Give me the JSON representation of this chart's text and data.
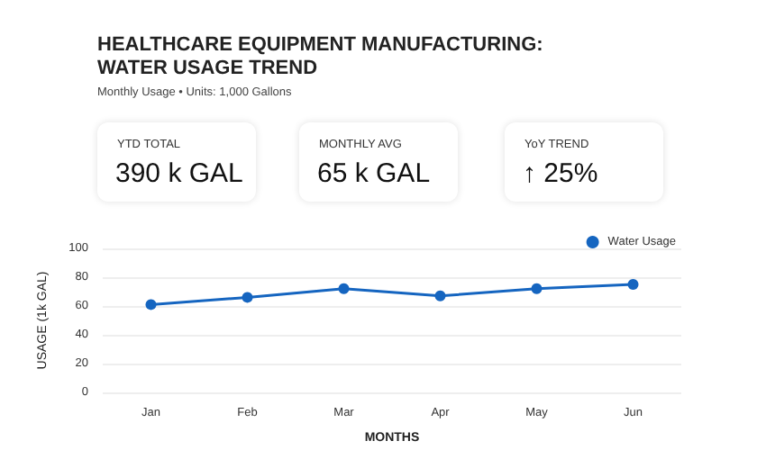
{
  "chart_data": {
    "type": "line",
    "title": "HEALTHCARE EQUIPMENT MANUFACTURING:\nWATER USAGE TREND",
    "subtitle": "Monthly Usage • Units: 1,000 Gallons",
    "annotations": [
      "YTD TOTAL",
      "390 k GAL",
      "MONTHLY AVG",
      "65 k GAL",
      "YoY TREND",
      "↑ 25%"
    ],
    "xlabel": "MONTHS",
    "ylabel": "USAGE (1k GAL)",
    "categories": [
      "Jan",
      "Feb",
      "Mar",
      "Apr",
      "May",
      "Jun"
    ],
    "series": [
      {
        "name": "Water Usage",
        "color": "#1565c0",
        "values": [
          61,
          66,
          72,
          67,
          72,
          75
        ]
      }
    ],
    "ylim": [
      0,
      100
    ],
    "yticks": [
      0,
      20,
      40,
      60,
      80,
      100
    ],
    "grid": "y",
    "legend": "top right",
    "marker": "circle",
    "line_style": "solid"
  }
}
